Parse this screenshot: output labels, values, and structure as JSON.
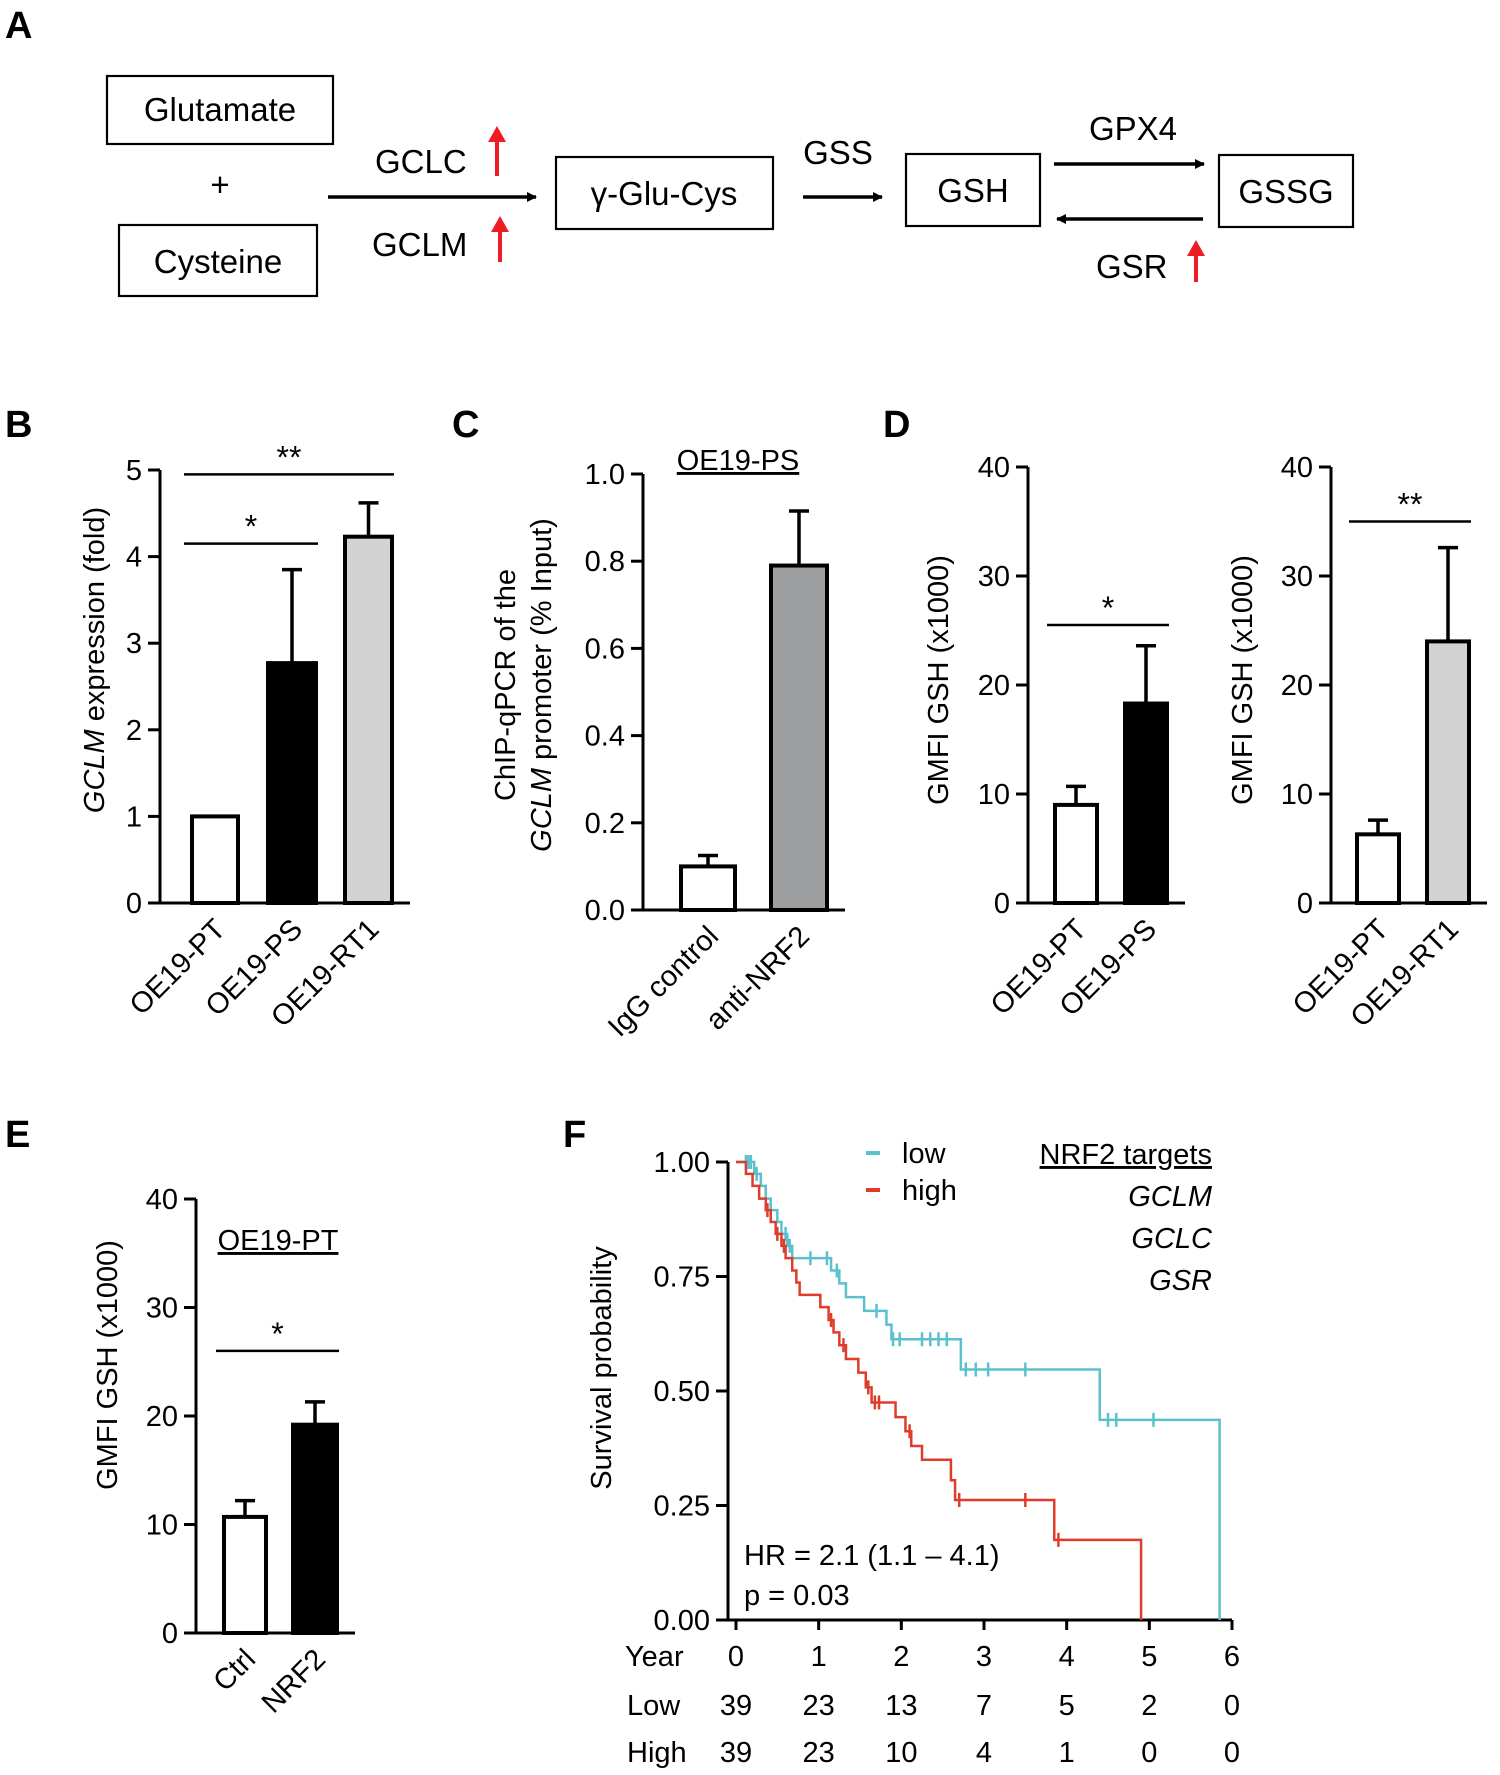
{
  "panels": {
    "A": "A",
    "B": "B",
    "C": "C",
    "D": "D",
    "E": "E",
    "F": "F"
  },
  "pathway": {
    "glutamate": "Glutamate",
    "plus": "+",
    "cysteine": "Cysteine",
    "gclc": "GCLC",
    "gclm": "GCLM",
    "gglucys": "γ-Glu-Cys",
    "gss": "GSS",
    "gsh": "GSH",
    "gpx4": "GPX4",
    "gssg": "GSSG",
    "gsr": "GSR",
    "arrow_color": "#ee1c25"
  },
  "chart_data": [
    {
      "id": "B",
      "type": "bar",
      "ylabel_italic": "GCLM",
      "ylabel": " expression (fold)",
      "ylim": [
        0,
        5
      ],
      "yticks": [
        "0",
        "1",
        "2",
        "3",
        "4",
        "5"
      ],
      "categories": [
        "OE19-PT",
        "OE19-PS",
        "OE19-RT1"
      ],
      "values": [
        1.0,
        2.77,
        4.23
      ],
      "errors": [
        0,
        1.08,
        0.39
      ],
      "colors": [
        "#ffffff",
        "#000000",
        "#d3d3d3"
      ],
      "significance": [
        {
          "from": 0,
          "to": 1,
          "label": "*",
          "y": 4.15
        },
        {
          "from": 0,
          "to": 2,
          "label": "**",
          "y": 4.95
        }
      ]
    },
    {
      "id": "C",
      "type": "bar",
      "title": "OE19-PS",
      "ylabel_line1": "ChIP-qPCR of the",
      "ylabel_italic": "GCLM",
      "ylabel_line2": " promoter (% Input)",
      "ylim": [
        0,
        1.0
      ],
      "yticks": [
        "0.0",
        "0.2",
        "0.4",
        "0.6",
        "0.8",
        "1.0"
      ],
      "categories": [
        "IgG control",
        "anti-NRF2"
      ],
      "values": [
        0.1,
        0.79
      ],
      "errors": [
        0.025,
        0.125
      ],
      "colors": [
        "#ffffff",
        "#9d9ea0"
      ]
    },
    {
      "id": "D1",
      "type": "bar",
      "ylabel": "GMFI GSH (x1000)",
      "ylim": [
        0,
        40
      ],
      "yticks": [
        "0",
        "10",
        "20",
        "30",
        "40"
      ],
      "categories": [
        "OE19-PT",
        "OE19-PS"
      ],
      "values": [
        9.0,
        18.3
      ],
      "errors": [
        1.7,
        5.3
      ],
      "colors": [
        "#ffffff",
        "#000000"
      ],
      "significance": [
        {
          "from": 0,
          "to": 1,
          "label": "*",
          "y": 25.5
        }
      ]
    },
    {
      "id": "D2",
      "type": "bar",
      "ylabel": "GMFI GSH (x1000)",
      "ylim": [
        0,
        40
      ],
      "yticks": [
        "0",
        "10",
        "20",
        "30",
        "40"
      ],
      "categories": [
        "OE19-PT",
        "OE19-RT1"
      ],
      "values": [
        6.3,
        24.0
      ],
      "errors": [
        1.3,
        8.6
      ],
      "colors": [
        "#ffffff",
        "#d3d3d3"
      ],
      "significance": [
        {
          "from": 0,
          "to": 1,
          "label": "**",
          "y": 35.0
        }
      ]
    },
    {
      "id": "E",
      "type": "bar",
      "title": "OE19-PT",
      "ylabel": "GMFI GSH (x1000)",
      "ylim": [
        0,
        40
      ],
      "yticks": [
        "0",
        "10",
        "20",
        "30",
        "40"
      ],
      "categories": [
        "Ctrl",
        "NRF2"
      ],
      "values": [
        10.7,
        19.2
      ],
      "errors": [
        1.5,
        2.1
      ],
      "colors": [
        "#ffffff",
        "#000000"
      ],
      "significance": [
        {
          "from": 0,
          "to": 1,
          "label": "*",
          "y": 26.0
        }
      ]
    },
    {
      "id": "F",
      "type": "line",
      "subtype": "kaplan-meier",
      "ylabel": "Survival probability",
      "xlim": [
        0,
        6
      ],
      "ylim": [
        0,
        1
      ],
      "yticks": [
        "0.00",
        "0.25",
        "0.50",
        "0.75",
        "1.00"
      ],
      "legend_title": "NRF2 targets",
      "legend_genes": [
        "GCLM",
        "GCLC",
        "GSR"
      ],
      "hr": "HR = 2.1 (1.1 – 4.1)",
      "pvalue": "p = 0.03",
      "series": [
        {
          "name": "low",
          "color": "#5bc2cd",
          "steps": [
            [
              0,
              1.0
            ],
            [
              0.22,
              0.974
            ],
            [
              0.3,
              0.948
            ],
            [
              0.36,
              0.92
            ],
            [
              0.42,
              0.895
            ],
            [
              0.5,
              0.869
            ],
            [
              0.55,
              0.843
            ],
            [
              0.62,
              0.817
            ],
            [
              0.68,
              0.79
            ],
            [
              1.15,
              0.763
            ],
            [
              1.25,
              0.735
            ],
            [
              1.33,
              0.705
            ],
            [
              1.55,
              0.675
            ],
            [
              1.82,
              0.645
            ],
            [
              1.88,
              0.613
            ],
            [
              2.72,
              0.547
            ],
            [
              4.4,
              0.437
            ],
            [
              5.85,
              0.0
            ]
          ],
          "censor": [
            [
              0.12,
              1.0
            ],
            [
              0.15,
              1.0
            ],
            [
              0.18,
              1.0
            ],
            [
              0.25,
              0.974
            ],
            [
              0.6,
              0.843
            ],
            [
              0.65,
              0.817
            ],
            [
              0.9,
              0.79
            ],
            [
              1.1,
              0.79
            ],
            [
              1.22,
              0.763
            ],
            [
              1.7,
              0.675
            ],
            [
              1.9,
              0.613
            ],
            [
              1.98,
              0.613
            ],
            [
              2.25,
              0.613
            ],
            [
              2.35,
              0.613
            ],
            [
              2.45,
              0.613
            ],
            [
              2.55,
              0.613
            ],
            [
              2.78,
              0.547
            ],
            [
              2.9,
              0.547
            ],
            [
              3.05,
              0.547
            ],
            [
              3.5,
              0.547
            ],
            [
              4.5,
              0.437
            ],
            [
              4.6,
              0.437
            ],
            [
              5.05,
              0.437
            ]
          ]
        },
        {
          "name": "high",
          "color": "#e03c2b",
          "steps": [
            [
              0,
              1.0
            ],
            [
              0.12,
              0.974
            ],
            [
              0.2,
              0.948
            ],
            [
              0.28,
              0.92
            ],
            [
              0.36,
              0.895
            ],
            [
              0.42,
              0.869
            ],
            [
              0.48,
              0.843
            ],
            [
              0.55,
              0.817
            ],
            [
              0.6,
              0.79
            ],
            [
              0.68,
              0.763
            ],
            [
              0.73,
              0.737
            ],
            [
              0.77,
              0.71
            ],
            [
              1.02,
              0.683
            ],
            [
              1.12,
              0.655
            ],
            [
              1.18,
              0.628
            ],
            [
              1.25,
              0.6
            ],
            [
              1.33,
              0.57
            ],
            [
              1.48,
              0.54
            ],
            [
              1.57,
              0.508
            ],
            [
              1.64,
              0.475
            ],
            [
              1.93,
              0.443
            ],
            [
              2.05,
              0.412
            ],
            [
              2.12,
              0.38
            ],
            [
              2.25,
              0.35
            ],
            [
              2.6,
              0.305
            ],
            [
              2.65,
              0.262
            ],
            [
              3.85,
              0.175
            ],
            [
              4.9,
              0.0
            ]
          ],
          "censor": [
            [
              0.38,
              0.895
            ],
            [
              0.5,
              0.843
            ],
            [
              0.58,
              0.817
            ],
            [
              1.15,
              0.655
            ],
            [
              1.3,
              0.6
            ],
            [
              1.6,
              0.508
            ],
            [
              1.68,
              0.475
            ],
            [
              1.73,
              0.475
            ],
            [
              2.1,
              0.412
            ],
            [
              2.7,
              0.262
            ],
            [
              3.5,
              0.262
            ],
            [
              3.9,
              0.175
            ]
          ]
        }
      ],
      "risk_table": {
        "header": "Year",
        "years": [
          "0",
          "1",
          "2",
          "3",
          "4",
          "5",
          "6"
        ],
        "rows": [
          {
            "label": "Low",
            "counts": [
              "39",
              "23",
              "13",
              "7",
              "5",
              "2",
              "0"
            ]
          },
          {
            "label": "High",
            "counts": [
              "39",
              "23",
              "10",
              "4",
              "1",
              "0",
              "0"
            ]
          }
        ]
      }
    }
  ]
}
